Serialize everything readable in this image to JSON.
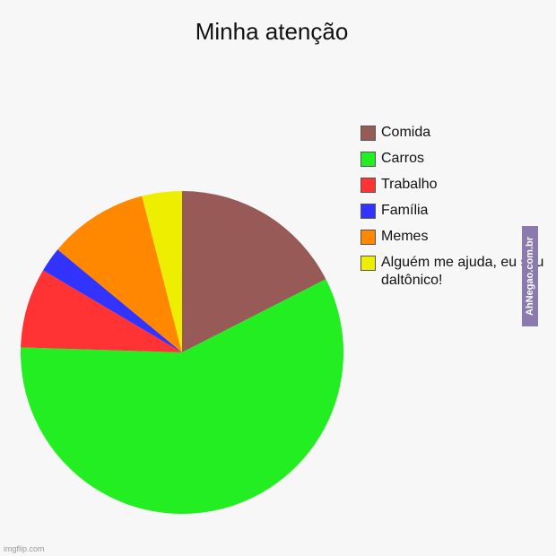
{
  "chart_data": {
    "type": "pie",
    "title": "Minha atenção",
    "start": "top",
    "direction": "clockwise",
    "legend_position": "right",
    "slices": [
      {
        "label": "Comida",
        "value": 17.5,
        "color": "#975a57"
      },
      {
        "label": "Carros",
        "value": 58,
        "color": "#22ee22"
      },
      {
        "label": "Trabalho",
        "value": 8,
        "color": "#ff3333"
      },
      {
        "label": "Família",
        "value": 2.5,
        "color": "#3333ff"
      },
      {
        "label": "Memes",
        "value": 10,
        "color": "#ff8800"
      },
      {
        "label": "Alguém me ajuda, eu sou daltônico!",
        "value": 4,
        "color": "#eeee00"
      }
    ]
  },
  "watermark": "AhNegao.com.br",
  "credit": "imgflip.com"
}
